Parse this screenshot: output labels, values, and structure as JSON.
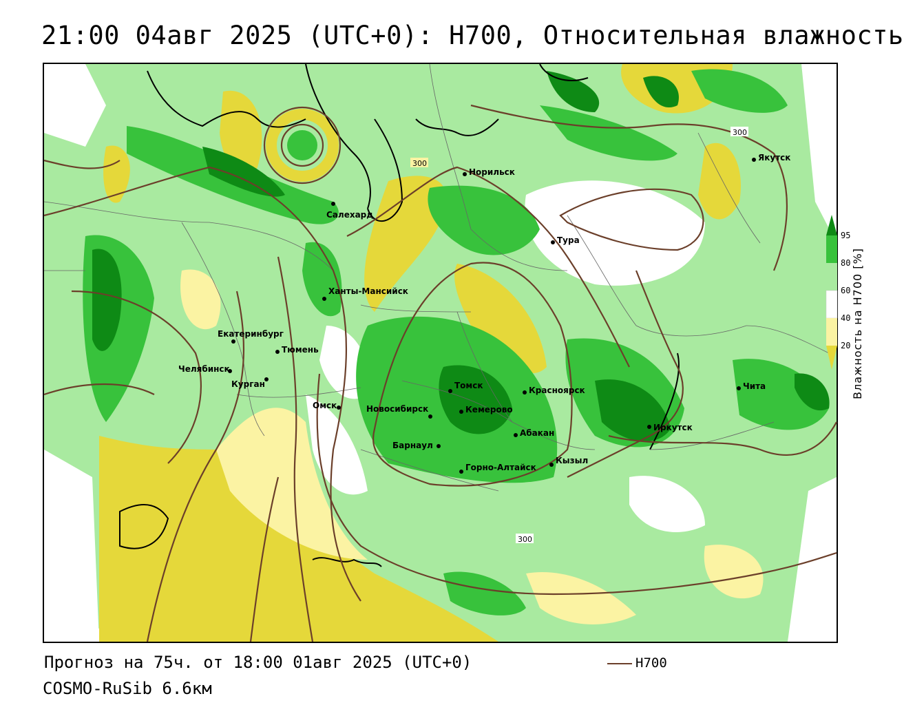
{
  "title": "21:00 04авг 2025 (UTC+0): H700, Относительная влажность",
  "footer": {
    "forecast": "Прогноз на 75ч. от 18:00 01авг 2025 (UTC+0)",
    "model": "COSMO-RuSib 6.6км"
  },
  "legend": {
    "contour_label": "H700",
    "contour_color": "#6b3f2a",
    "colorbar_title": "Влажность на H700 [%]",
    "ticks": [
      "95",
      "80",
      "60",
      "40",
      "20"
    ],
    "colors": {
      "dark_green": "#0e8a15",
      "green": "#38c23c",
      "light_green": "#a9eaa0",
      "white": "#ffffff",
      "light_yellow": "#fbf3a3",
      "yellow": "#e5d83a"
    }
  },
  "contour_labels": [
    "300",
    "300",
    "300"
  ],
  "cities": [
    {
      "name": "Якутск"
    },
    {
      "name": "Норильск"
    },
    {
      "name": "Салехард"
    },
    {
      "name": "Тура"
    },
    {
      "name": "Ханты-Мансийск"
    },
    {
      "name": "Екатеринбург"
    },
    {
      "name": "Тюмень"
    },
    {
      "name": "Челябинск"
    },
    {
      "name": "Курган"
    },
    {
      "name": "Омск"
    },
    {
      "name": "Томск"
    },
    {
      "name": "Красноярск"
    },
    {
      "name": "Новосибирск"
    },
    {
      "name": "Кемерово"
    },
    {
      "name": "Абакан"
    },
    {
      "name": "Барнаул"
    },
    {
      "name": "Горно-Алтайск"
    },
    {
      "name": "Кызыл"
    },
    {
      "name": "Иркутск"
    },
    {
      "name": "Чита"
    }
  ]
}
